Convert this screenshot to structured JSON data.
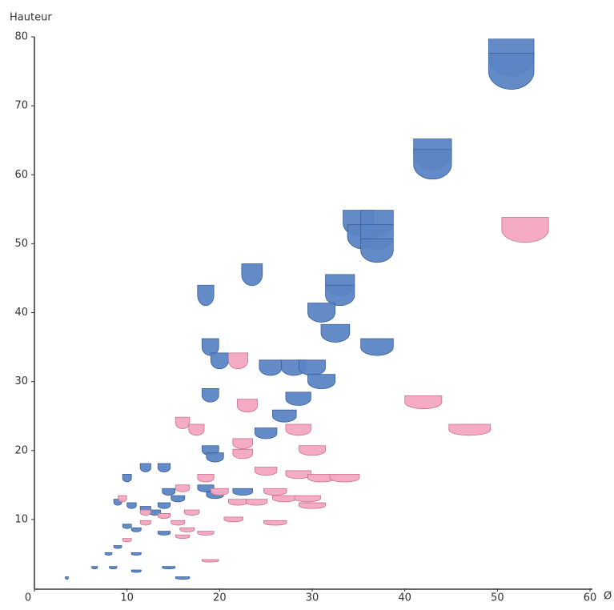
{
  "chart_data": {
    "type": "scatter",
    "y_label": "Hauteur",
    "x_label": "Ø",
    "xlim": [
      0,
      60
    ],
    "ylim": [
      0,
      80
    ],
    "xticks": [
      0,
      10,
      20,
      30,
      40,
      50,
      60
    ],
    "yticks": [
      10,
      20,
      30,
      40,
      50,
      60,
      70,
      80
    ],
    "series": [
      {
        "color": "#5b85c4",
        "x": [
          51.5,
          51.5,
          43,
          43,
          35,
          35.5,
          37,
          37,
          37,
          23.5,
          18.5,
          33,
          33,
          31,
          32.5,
          37,
          19,
          20,
          25.5,
          28,
          30,
          31,
          19,
          28.5,
          27,
          25,
          19,
          19.5,
          10,
          12,
          14,
          9,
          10.5,
          14.5,
          15.5,
          18.5,
          19.5,
          22.5,
          12,
          13,
          14,
          10,
          11,
          14,
          9,
          8,
          11,
          6.5,
          8.5,
          11,
          14.5,
          16,
          3.5
        ],
        "values": [
          77,
          75,
          63,
          61.5,
          53,
          51,
          53,
          51,
          49,
          45.5,
          42.5,
          44,
          42.5,
          40,
          37,
          35,
          35,
          33,
          32,
          32,
          32,
          30,
          28,
          27.5,
          25,
          22.5,
          20,
          19,
          16,
          17.5,
          17.5,
          12.5,
          12,
          14,
          13,
          14.5,
          13.5,
          14,
          11.5,
          11,
          12,
          9,
          8.5,
          8,
          6,
          5,
          5,
          3,
          3,
          2.5,
          3,
          1.5,
          1.5
        ]
      },
      {
        "color": "#f4a6c0",
        "x": [
          53,
          42,
          47,
          22,
          23,
          16,
          17.5,
          22.5,
          22.5,
          28.5,
          30,
          25,
          28.5,
          31,
          33.5,
          18.5,
          16,
          20,
          22,
          24,
          26,
          27,
          29.5,
          30,
          21.5,
          26,
          18.5,
          15.5,
          16.5,
          14,
          12,
          9.5,
          12,
          16,
          19,
          10,
          17
        ],
        "values": [
          52,
          27,
          23,
          33,
          26.5,
          24,
          23,
          21,
          19.5,
          23,
          20,
          17,
          16.5,
          16,
          16,
          16,
          14.5,
          14,
          12.5,
          12.5,
          14,
          13,
          13,
          12,
          10,
          9.5,
          8,
          9.5,
          8.5,
          10.5,
          9.5,
          13,
          11,
          7.5,
          4,
          7,
          11
        ]
      }
    ]
  }
}
